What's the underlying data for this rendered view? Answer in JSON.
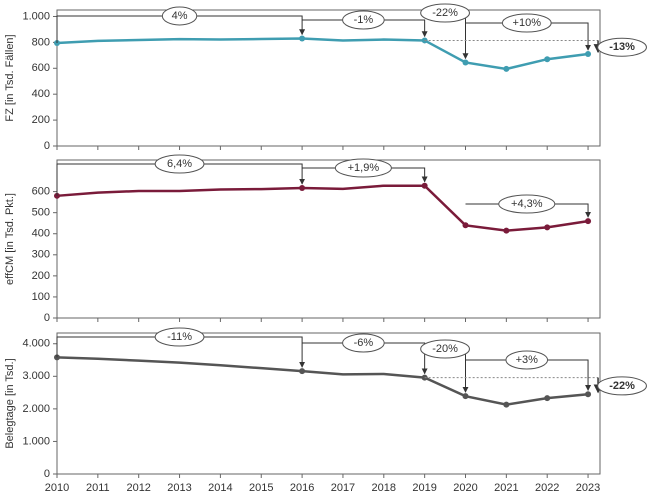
{
  "chart_data": [
    {
      "type": "line",
      "ylabel": "FZ [in Tsd. Fällen]",
      "color": "#3f9db1",
      "values": [
        795,
        812,
        818,
        825,
        822,
        826,
        830,
        815,
        822,
        815,
        645,
        595,
        670,
        710
      ],
      "ylim": [
        0,
        1050
      ],
      "yticks": [
        0,
        200,
        400,
        600,
        800,
        {
          "value": 1000,
          "label": "1.000"
        }
      ],
      "annotations": [
        "4%",
        "-1%",
        "-22%",
        "+10%",
        "-13%"
      ]
    },
    {
      "type": "line",
      "ylabel": "effCM [in Tsd. Pkt.]",
      "color": "#7a1b3a",
      "values": [
        580,
        595,
        603,
        603,
        610,
        612,
        617,
        613,
        628,
        628,
        440,
        415,
        430,
        460
      ],
      "ylim": [
        0,
        750
      ],
      "yticks": [
        0,
        100,
        200,
        300,
        400,
        500,
        600
      ],
      "annotations": [
        "6,4%",
        "+1,9%",
        "+4,3%"
      ]
    },
    {
      "type": "line",
      "ylabel": "Belegtage [in Tsd.]",
      "color": "#555555",
      "categories": [
        "2010",
        "2011",
        "2012",
        "2013",
        "2014",
        "2015",
        "2016",
        "2017",
        "2018",
        "2019",
        "2020",
        "2021",
        "2022",
        "2023"
      ],
      "values": [
        3580,
        3540,
        3480,
        3420,
        3340,
        3250,
        3160,
        3060,
        3070,
        2960,
        2390,
        2130,
        2330,
        2450
      ],
      "ylim": [
        0,
        4330
      ],
      "yticks": [
        0,
        {
          "value": 1000,
          "label": "1.000"
        },
        {
          "value": 2000,
          "label": "2.000"
        },
        {
          "value": 3000,
          "label": "3.000"
        },
        {
          "value": 4000,
          "label": "4.000"
        }
      ],
      "annotations": [
        "-11%",
        "-6%",
        "-20%",
        "+3%",
        "-22%"
      ]
    }
  ]
}
